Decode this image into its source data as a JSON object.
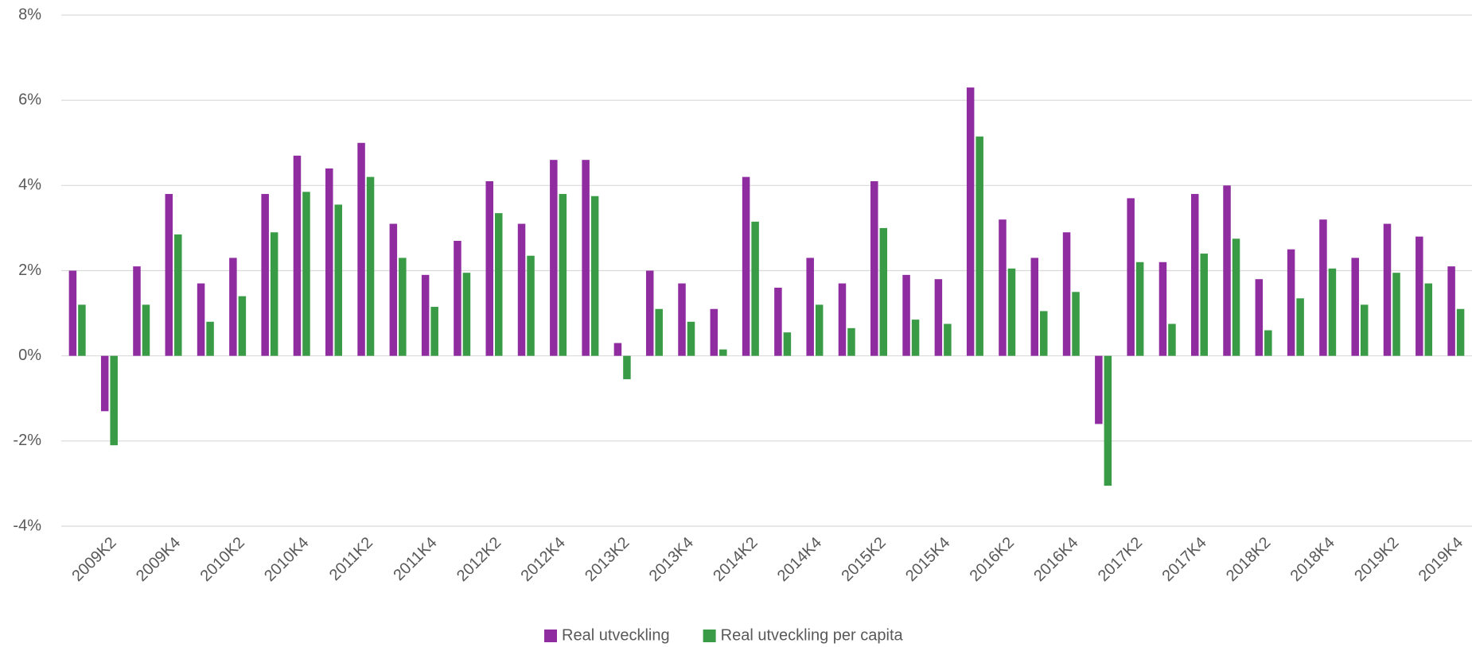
{
  "chart_data": {
    "type": "bar",
    "categories": [
      null,
      "2009K2",
      null,
      "2009K4",
      null,
      "2010K2",
      null,
      "2010K4",
      null,
      "2011K2",
      null,
      "2011K4",
      null,
      "2012K2",
      null,
      "2012K4",
      null,
      "2013K2",
      null,
      "2013K4",
      null,
      "2014K2",
      null,
      "2014K4",
      null,
      "2015K2",
      null,
      "2015K4",
      null,
      "2016K2",
      null,
      "2016K4",
      null,
      "2017K2",
      null,
      "2017K4",
      null,
      "2018K2",
      null,
      "2018K4",
      null,
      "2019K2",
      null,
      "2019K4"
    ],
    "series": [
      {
        "name": "Real utveckling",
        "color": "#8e2ca0",
        "values": [
          2.0,
          -1.3,
          2.1,
          3.8,
          1.7,
          2.3,
          3.8,
          4.7,
          4.4,
          5.0,
          3.1,
          1.9,
          2.7,
          4.1,
          3.1,
          4.6,
          4.6,
          0.3,
          2.0,
          1.7,
          1.1,
          4.2,
          1.6,
          2.3,
          1.7,
          4.1,
          1.9,
          1.8,
          6.3,
          3.2,
          2.3,
          2.9,
          -1.6,
          3.7,
          2.2,
          3.8,
          4.0,
          1.8,
          2.5,
          3.2,
          2.3,
          3.1,
          2.8,
          2.1
        ]
      },
      {
        "name": "Real utveckling per capita",
        "color": "#3a9b46",
        "values": [
          1.2,
          -2.1,
          1.2,
          2.85,
          0.8,
          1.4,
          2.9,
          3.85,
          3.55,
          4.2,
          2.3,
          1.15,
          1.95,
          3.35,
          2.35,
          3.8,
          3.75,
          -0.55,
          1.1,
          0.8,
          0.15,
          3.15,
          0.55,
          1.2,
          0.65,
          3.0,
          0.85,
          0.75,
          5.15,
          2.05,
          1.05,
          1.5,
          -3.05,
          2.2,
          0.75,
          2.4,
          2.75,
          0.6,
          1.35,
          2.05,
          1.2,
          1.95,
          1.7,
          1.1
        ]
      }
    ],
    "ylim": [
      -4,
      8
    ],
    "yticks": [
      {
        "value": -4,
        "label": "-4%"
      },
      {
        "value": -2,
        "label": "-2%"
      },
      {
        "value": 0,
        "label": "0%"
      },
      {
        "value": 2,
        "label": "2%"
      },
      {
        "value": 4,
        "label": "4%"
      },
      {
        "value": 6,
        "label": "6%"
      },
      {
        "value": 8,
        "label": "8%"
      }
    ],
    "grid": true,
    "legend": "bottom"
  }
}
